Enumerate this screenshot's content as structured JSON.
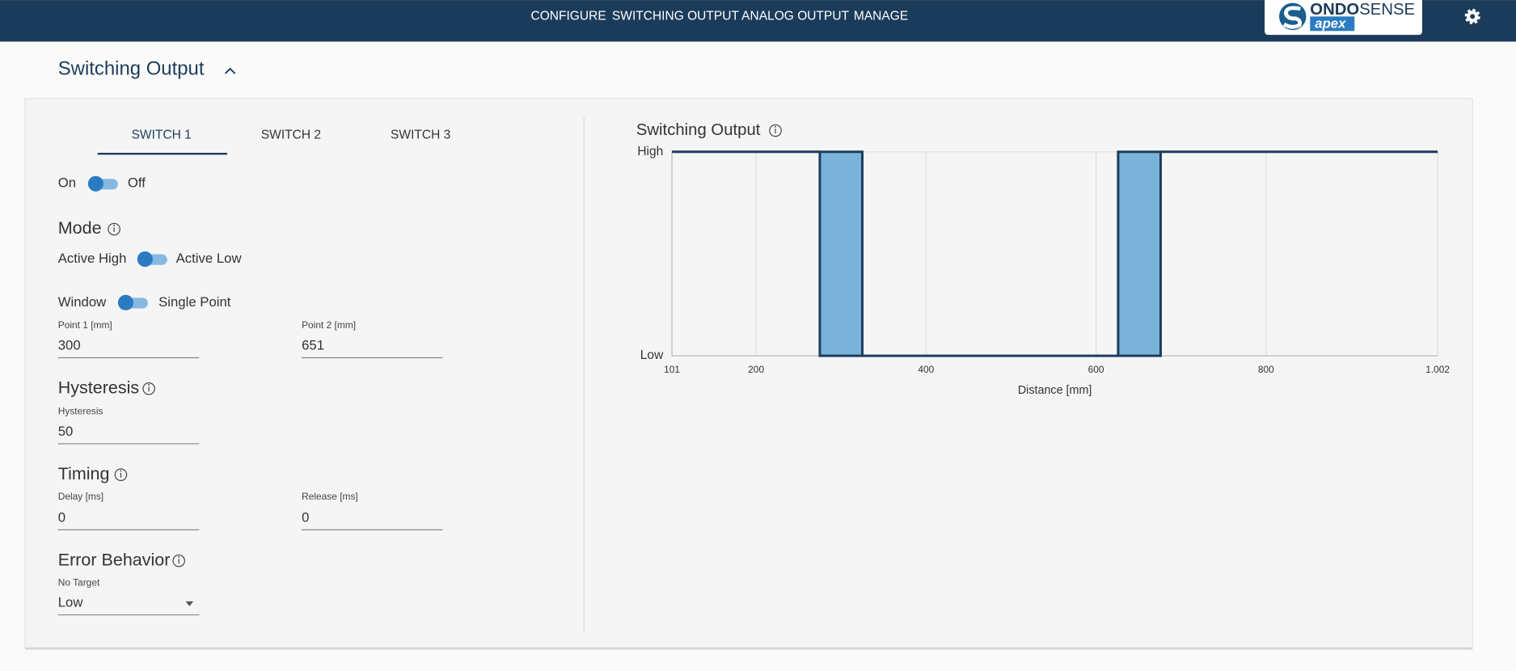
{
  "nav": {
    "items": [
      "CONFIGURE",
      "SWITCHING OUTPUT",
      "ANALOG OUTPUT",
      "MANAGE"
    ],
    "logo": {
      "bold": "ONDO",
      "light": "SENSE",
      "sub": "apex"
    }
  },
  "section": {
    "title": "Switching Output"
  },
  "tabs": [
    "SWITCH 1",
    "SWITCH 2",
    "SWITCH 3"
  ],
  "enable": {
    "left": "On",
    "right": "Off"
  },
  "mode": {
    "heading": "Mode",
    "left": "Active High",
    "right": "Active Low"
  },
  "window": {
    "left": "Window",
    "right": "Single Point"
  },
  "points": {
    "point1": {
      "label": "Point 1 [mm]",
      "value": 300
    },
    "point2": {
      "label": "Point 2 [mm]",
      "value": 651
    }
  },
  "hysteresis": {
    "heading": "Hysteresis",
    "label": "Hysteresis",
    "value": 50
  },
  "timing": {
    "heading": "Timing",
    "delay": {
      "label": "Delay [ms]",
      "value": 0
    },
    "release": {
      "label": "Release [ms]",
      "value": 0
    }
  },
  "error_behavior": {
    "heading": "Error Behavior",
    "label": "No Target",
    "value": "Low"
  },
  "chart_data": {
    "type": "step",
    "title": "Switching Output",
    "x_label": "Distance [mm]",
    "xlim": [
      101,
      1002
    ],
    "xticks": [
      101,
      200,
      400,
      600,
      800,
      {
        "value": 1002,
        "label": "1.002"
      }
    ],
    "ylim": [
      0,
      1
    ],
    "yticks": [
      {
        "value": 0,
        "label": "Low"
      },
      {
        "value": 1,
        "label": "High"
      }
    ],
    "grid": true,
    "line": {
      "color": "#1d3d5c",
      "x": [
        101,
        275,
        300,
        325,
        626,
        651,
        676,
        1002
      ],
      "values": [
        1,
        1,
        null,
        0,
        0,
        null,
        1,
        1
      ]
    },
    "band_color": "#79b3d9",
    "bands": [
      {
        "from": 275,
        "to": 325,
        "level": 1
      },
      {
        "from": 626,
        "to": 676,
        "level": 1
      }
    ]
  }
}
